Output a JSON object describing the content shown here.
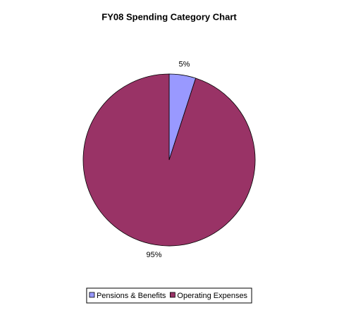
{
  "chart_data": {
    "type": "pie",
    "title": "FY08 Spending Category Chart",
    "categories": [
      "Pensions & Benefits",
      "Operating Expenses"
    ],
    "values": [
      5,
      95
    ],
    "value_labels": [
      "5%",
      "95%"
    ],
    "colors": [
      "#9999ff",
      "#993366"
    ],
    "legend": "bottom"
  }
}
